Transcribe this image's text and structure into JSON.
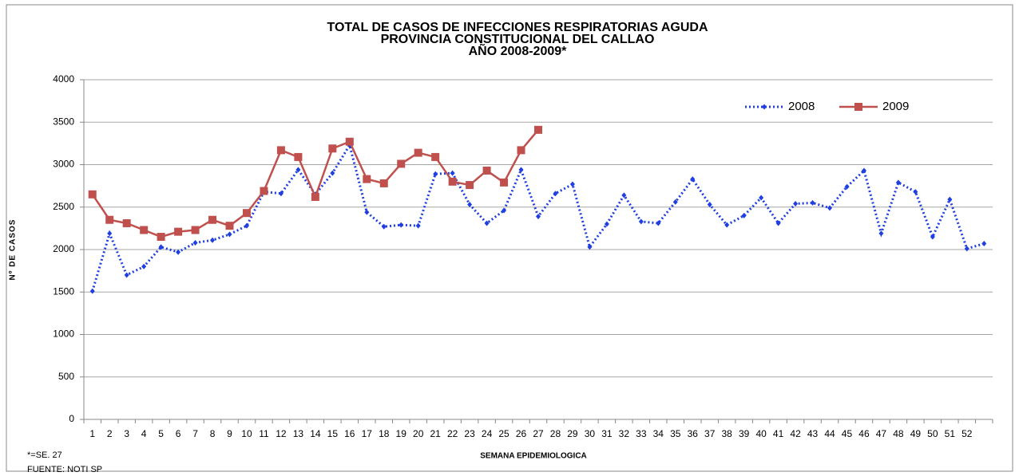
{
  "chart_data": {
    "type": "line",
    "title": [
      "TOTAL DE CASOS DE INFECCIONES RESPIRATORIAS AGUDA",
      "PROVINCIA CONSTITUCIONAL DEL CALLAO",
      "AÑO 2008-2009*"
    ],
    "x_label": "SEMANA EPIDEMIOLOGICA",
    "y_label": "Nº DE CASOS",
    "footnotes": [
      "*=SE. 27",
      "FUENTE: NOTI  SP"
    ],
    "categories": [
      "1",
      "2",
      "3",
      "4",
      "5",
      "6",
      "7",
      "8",
      "9",
      "10",
      "11",
      "12",
      "13",
      "14",
      "15",
      "16",
      "17",
      "18",
      "19",
      "20",
      "21",
      "22",
      "23",
      "24",
      "25",
      "26",
      "27",
      "28",
      "29",
      "30",
      "31",
      "32",
      "33",
      "34",
      "35",
      "36",
      "37",
      "38",
      "39",
      "40",
      "41",
      "42",
      "43",
      "44",
      "45",
      "46",
      "47",
      "48",
      "49",
      "50",
      "51",
      "52",
      null
    ],
    "series": [
      {
        "name": "2008",
        "color": "#1f3fe0",
        "style": "dotted",
        "marker": "diamond",
        "values": [
          1510,
          2190,
          1700,
          1800,
          2030,
          1970,
          2080,
          2110,
          2180,
          2280,
          2680,
          2660,
          2940,
          2650,
          2900,
          3230,
          2440,
          2270,
          2290,
          2280,
          2890,
          2900,
          2530,
          2310,
          2460,
          2940,
          2390,
          2660,
          2770,
          2030,
          2300,
          2640,
          2330,
          2310,
          2560,
          2830,
          2530,
          2290,
          2400,
          2610,
          2310,
          2540,
          2550,
          2490,
          2740,
          2930,
          2190,
          2790,
          2680,
          2150,
          2590,
          2010,
          2070
        ]
      },
      {
        "name": "2009",
        "color": "#c0504d",
        "style": "solid",
        "marker": "square",
        "values": [
          2650,
          2350,
          2310,
          2230,
          2150,
          2210,
          2230,
          2350,
          2280,
          2430,
          2690,
          3170,
          3090,
          2620,
          3190,
          3270,
          2830,
          2780,
          3010,
          3140,
          3090,
          2800,
          2760,
          2930,
          2790,
          3170,
          3410,
          null,
          null,
          null,
          null,
          null,
          null,
          null,
          null,
          null,
          null,
          null,
          null,
          null,
          null,
          null,
          null,
          null,
          null,
          null,
          null,
          null,
          null,
          null,
          null,
          null,
          null
        ]
      }
    ],
    "ylim": [
      0,
      4000
    ],
    "yticks": [
      0,
      500,
      1000,
      1500,
      2000,
      2500,
      3000,
      3500,
      4000
    ],
    "grid": true,
    "legend": "top-right"
  }
}
